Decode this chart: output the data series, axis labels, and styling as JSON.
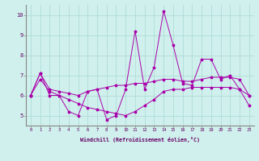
{
  "xlabel": "Windchill (Refroidissement éolien,°C)",
  "background_color": "#cff0ec",
  "grid_color": "#aad8d3",
  "line_color": "#aa00aa",
  "xlim": [
    -0.5,
    23.5
  ],
  "ylim": [
    4.5,
    10.5
  ],
  "yticks": [
    5,
    6,
    7,
    8,
    9,
    10
  ],
  "xticks": [
    0,
    1,
    2,
    3,
    4,
    5,
    6,
    7,
    8,
    9,
    10,
    11,
    12,
    13,
    14,
    15,
    16,
    17,
    18,
    19,
    20,
    21,
    22,
    23
  ],
  "line1_x": [
    0,
    1,
    2,
    3,
    4,
    5,
    6,
    7,
    8,
    9,
    10,
    11,
    12,
    13,
    14,
    15,
    16,
    17,
    18,
    19,
    20,
    21,
    22,
    23
  ],
  "line1_y": [
    6.0,
    7.1,
    6.0,
    6.0,
    5.2,
    5.0,
    6.2,
    6.3,
    4.8,
    5.0,
    6.3,
    9.2,
    6.3,
    7.4,
    10.2,
    8.5,
    6.6,
    6.5,
    7.8,
    7.8,
    6.8,
    7.0,
    6.3,
    6.0
  ],
  "line2_x": [
    0,
    1,
    2,
    3,
    4,
    5,
    6,
    7,
    8,
    9,
    10,
    11,
    12,
    13,
    14,
    15,
    16,
    17,
    18,
    19,
    20,
    21,
    22,
    23
  ],
  "line2_y": [
    6.0,
    6.8,
    6.2,
    6.0,
    5.8,
    5.6,
    5.4,
    5.3,
    5.2,
    5.1,
    5.0,
    5.2,
    5.5,
    5.8,
    6.2,
    6.3,
    6.3,
    6.4,
    6.4,
    6.4,
    6.4,
    6.4,
    6.3,
    5.5
  ],
  "line3_x": [
    0,
    1,
    2,
    3,
    4,
    5,
    6,
    7,
    8,
    9,
    10,
    11,
    12,
    13,
    14,
    15,
    16,
    17,
    18,
    19,
    20,
    21,
    22,
    23
  ],
  "line3_y": [
    6.0,
    7.1,
    6.3,
    6.2,
    6.1,
    6.0,
    6.2,
    6.3,
    6.4,
    6.5,
    6.5,
    6.6,
    6.6,
    6.7,
    6.8,
    6.8,
    6.7,
    6.7,
    6.8,
    6.9,
    6.9,
    6.9,
    6.8,
    6.0
  ]
}
